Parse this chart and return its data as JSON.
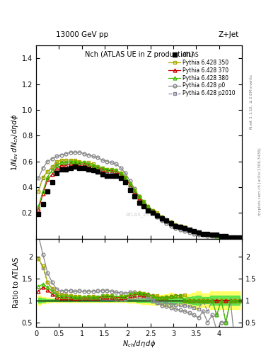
{
  "title_top": "13000 GeV pp",
  "title_top_right": "Z+Jet",
  "plot_title": "Nch (ATLAS UE in Z production)",
  "xlabel": "$N_{ch}/d\\eta\\,d\\phi$",
  "ylabel_main": "$1/N_{ev}\\,dN_{ch}/d\\eta\\,d\\phi$",
  "ylabel_ratio": "Ratio to ATLAS",
  "right_label1": "Rivet 3.1.10, $\\geq$2.8M events",
  "right_label2": "mcplots.cern.ch [arXiv:1306.3436]",
  "watermark": "ATLAS_2019...",
  "xlim": [
    0,
    4.5
  ],
  "ylim_main": [
    0.0,
    1.5
  ],
  "ylim_ratio": [
    0.4,
    2.4
  ],
  "yticks_main": [
    0.2,
    0.4,
    0.6,
    0.8,
    1.0,
    1.2,
    1.4
  ],
  "yticks_ratio": [
    0.5,
    1.0,
    1.5,
    2.0
  ],
  "xticks": [
    0,
    0.5,
    1.0,
    1.5,
    2.0,
    2.5,
    3.0,
    3.5,
    4.0,
    4.5
  ],
  "x_data": [
    0.05,
    0.15,
    0.25,
    0.35,
    0.45,
    0.55,
    0.65,
    0.75,
    0.85,
    0.95,
    1.05,
    1.15,
    1.25,
    1.35,
    1.45,
    1.55,
    1.65,
    1.75,
    1.85,
    1.95,
    2.05,
    2.15,
    2.25,
    2.35,
    2.45,
    2.55,
    2.65,
    2.75,
    2.85,
    2.95,
    3.05,
    3.15,
    3.25,
    3.35,
    3.45,
    3.55,
    3.65,
    3.75,
    3.85,
    3.95,
    4.05,
    4.15,
    4.25,
    4.35,
    4.45
  ],
  "atlas_y": [
    0.19,
    0.27,
    0.37,
    0.44,
    0.51,
    0.54,
    0.54,
    0.55,
    0.56,
    0.55,
    0.55,
    0.54,
    0.53,
    0.52,
    0.5,
    0.49,
    0.49,
    0.49,
    0.47,
    0.44,
    0.38,
    0.33,
    0.28,
    0.25,
    0.22,
    0.2,
    0.18,
    0.16,
    0.14,
    0.12,
    0.1,
    0.09,
    0.08,
    0.07,
    0.06,
    0.05,
    0.04,
    0.04,
    0.03,
    0.03,
    0.02,
    0.02,
    0.01,
    0.01,
    0.01
  ],
  "atlas_err": [
    0.01,
    0.01,
    0.01,
    0.01,
    0.01,
    0.01,
    0.01,
    0.01,
    0.01,
    0.01,
    0.01,
    0.01,
    0.01,
    0.01,
    0.01,
    0.01,
    0.01,
    0.01,
    0.01,
    0.01,
    0.01,
    0.01,
    0.01,
    0.01,
    0.01,
    0.01,
    0.01,
    0.01,
    0.01,
    0.01,
    0.005,
    0.005,
    0.005,
    0.005,
    0.005,
    0.005,
    0.003,
    0.003,
    0.003,
    0.003,
    0.002,
    0.002,
    0.001,
    0.001,
    0.001
  ],
  "p350_y": [
    0.37,
    0.48,
    0.52,
    0.56,
    0.6,
    0.61,
    0.61,
    0.61,
    0.61,
    0.6,
    0.59,
    0.59,
    0.58,
    0.56,
    0.55,
    0.54,
    0.54,
    0.53,
    0.51,
    0.48,
    0.43,
    0.38,
    0.33,
    0.29,
    0.25,
    0.22,
    0.2,
    0.17,
    0.15,
    0.13,
    0.11,
    0.1,
    0.09,
    0.07,
    0.06,
    0.05,
    0.04,
    0.04,
    0.03,
    0.03,
    0.02,
    0.02,
    0.01,
    0.01,
    0.01
  ],
  "p370_y": [
    0.23,
    0.35,
    0.46,
    0.5,
    0.55,
    0.57,
    0.57,
    0.58,
    0.58,
    0.58,
    0.58,
    0.57,
    0.56,
    0.55,
    0.54,
    0.53,
    0.53,
    0.52,
    0.5,
    0.47,
    0.42,
    0.37,
    0.32,
    0.28,
    0.25,
    0.22,
    0.19,
    0.17,
    0.15,
    0.13,
    0.11,
    0.1,
    0.08,
    0.07,
    0.06,
    0.05,
    0.04,
    0.04,
    0.03,
    0.03,
    0.02,
    0.02,
    0.01,
    0.01,
    0.01
  ],
  "p380_y": [
    0.25,
    0.37,
    0.48,
    0.53,
    0.57,
    0.59,
    0.59,
    0.6,
    0.6,
    0.59,
    0.59,
    0.58,
    0.57,
    0.56,
    0.55,
    0.54,
    0.54,
    0.53,
    0.51,
    0.48,
    0.43,
    0.38,
    0.33,
    0.29,
    0.25,
    0.22,
    0.19,
    0.17,
    0.15,
    0.13,
    0.11,
    0.1,
    0.08,
    0.07,
    0.06,
    0.05,
    0.04,
    0.04,
    0.03,
    0.02,
    0.02,
    0.01,
    0.01,
    0.01,
    0.01
  ],
  "pp0_y": [
    0.47,
    0.55,
    0.6,
    0.62,
    0.64,
    0.65,
    0.66,
    0.67,
    0.67,
    0.67,
    0.66,
    0.65,
    0.64,
    0.63,
    0.61,
    0.6,
    0.59,
    0.58,
    0.55,
    0.51,
    0.45,
    0.39,
    0.33,
    0.28,
    0.24,
    0.2,
    0.17,
    0.14,
    0.12,
    0.1,
    0.08,
    0.07,
    0.06,
    0.05,
    0.04,
    0.03,
    0.03,
    0.02,
    0.02,
    0.01,
    0.01,
    0.01,
    0.01,
    0.0,
    0.0
  ],
  "pp2010_y": [
    0.37,
    0.47,
    0.52,
    0.55,
    0.58,
    0.59,
    0.59,
    0.59,
    0.59,
    0.58,
    0.57,
    0.56,
    0.55,
    0.54,
    0.52,
    0.51,
    0.51,
    0.5,
    0.48,
    0.45,
    0.4,
    0.35,
    0.3,
    0.27,
    0.23,
    0.2,
    0.17,
    0.15,
    0.13,
    0.11,
    0.09,
    0.08,
    0.07,
    0.06,
    0.05,
    0.04,
    0.04,
    0.03,
    0.03,
    0.02,
    0.02,
    0.01,
    0.01,
    0.01,
    0.01
  ],
  "color_atlas": "#000000",
  "color_p350": "#aaaa00",
  "color_p370": "#cc0000",
  "color_p380": "#44bb00",
  "color_pp0": "#888888",
  "color_pp2010": "#888899",
  "color_band_yellow": "#ffff44",
  "color_band_green": "#44dd44",
  "legend_labels": [
    "ATLAS",
    "Pythia 6.428 350",
    "Pythia 6.428 370",
    "Pythia 6.428 380",
    "Pythia 6.428 p0",
    "Pythia 6.428 p2010"
  ]
}
